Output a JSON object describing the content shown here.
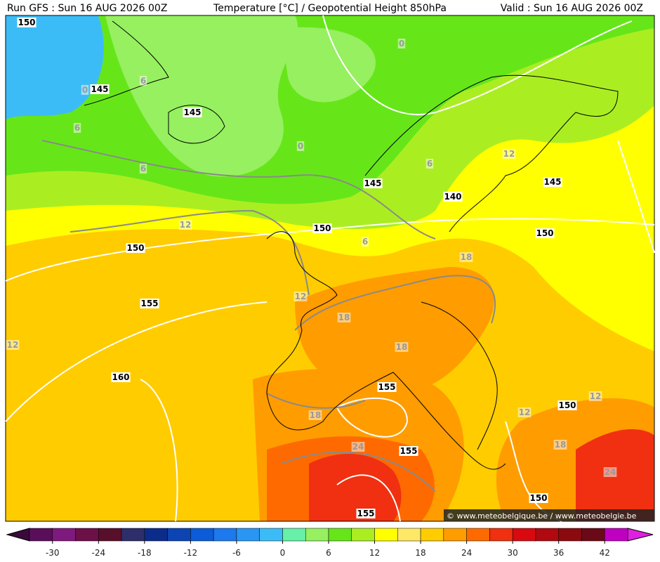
{
  "header": {
    "run": "Run GFS : Sun 16 AUG 2026 00Z",
    "title": "Temperature [°C] / Geopotential Height 850hPa",
    "valid": "Valid : Sun 16 AUG 2026 00Z"
  },
  "credit": "© www.meteobelgique.be / www.meteobelgie.be",
  "contour_labels": [
    "150",
    "0",
    "0",
    "145",
    "6",
    "6",
    "145",
    "0",
    "6",
    "12",
    "6",
    "145",
    "140",
    "145",
    "12",
    "150",
    "6",
    "150",
    "150",
    "18",
    "12",
    "155",
    "18",
    "12",
    "18",
    "160",
    "155",
    "12",
    "150",
    "12",
    "18",
    "24",
    "155",
    "18",
    "24",
    "150",
    "155"
  ],
  "colorbar": {
    "ticks": [
      -30,
      -24,
      -18,
      -12,
      -6,
      0,
      6,
      12,
      18,
      24,
      30,
      36,
      42
    ],
    "levels": [
      -33,
      -30,
      -27,
      -24,
      -21,
      -18,
      -15,
      -12,
      -9,
      -6,
      -3,
      0,
      3,
      6,
      9,
      12,
      15,
      18,
      21,
      24,
      27,
      30,
      33,
      36,
      39,
      42,
      45
    ],
    "colors": [
      "#5a0e5a",
      "#7e1a7e",
      "#6c1048",
      "#58102a",
      "#2e2e6a",
      "#0c2c8c",
      "#0c44b4",
      "#0c5cd8",
      "#1e78ee",
      "#2a96f4",
      "#3cbcf6",
      "#66f0a8",
      "#96f060",
      "#66e619",
      "#aaee22",
      "#ffff00",
      "#ffe866",
      "#ffcc00",
      "#ff9c00",
      "#ff6a00",
      "#f03010",
      "#d80a10",
      "#b00a10",
      "#8a0a10",
      "#6a0a18",
      "#c000c0"
    ],
    "under_color": "#3a0a3a",
    "over_color": "#e020e0"
  }
}
